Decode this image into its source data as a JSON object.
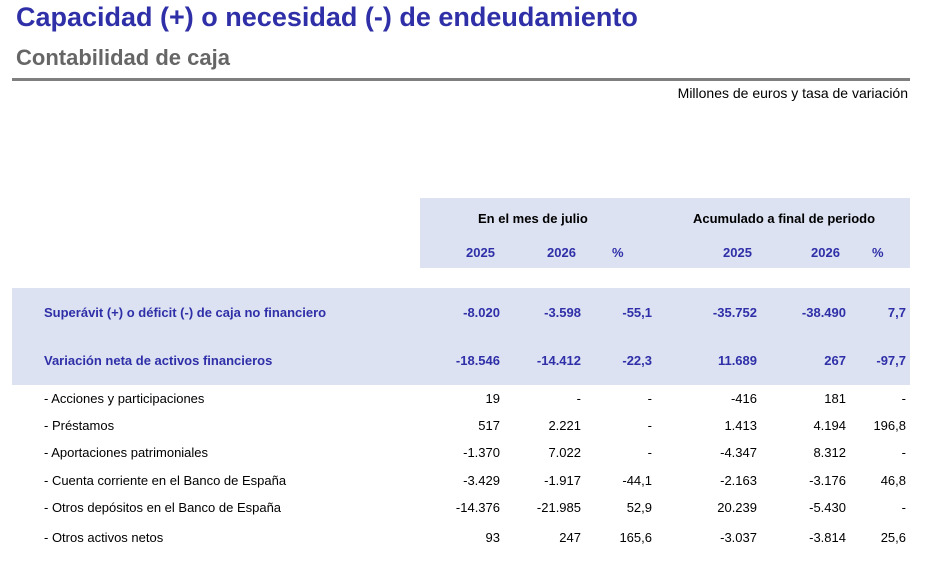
{
  "title": "Capacidad (+) o necesidad (-) de endeudamiento",
  "subtitle": "Contabilidad de caja",
  "units": "Millones de euros y tasa de variación",
  "header": {
    "group_month": "En el mes de julio",
    "group_cumulative": "Acumulado a final de periodo",
    "columns": [
      "2025",
      "2026",
      "%",
      "2025",
      "2026",
      "%"
    ]
  },
  "rows": [
    {
      "label": "Superávit (+) o déficit (-) de caja no financiero",
      "type": "main",
      "values": [
        "-8.020",
        "-3.598",
        "-55,1",
        "-35.752",
        "-38.490",
        "7,7"
      ]
    },
    {
      "label": "Variación neta de activos financieros",
      "type": "main",
      "values": [
        "-18.546",
        "-14.412",
        "-22,3",
        "11.689",
        "267",
        "-97,7"
      ]
    },
    {
      "label": "- Acciones y participaciones",
      "type": "sub",
      "values": [
        "19",
        "-",
        "-",
        "-416",
        "181",
        "-"
      ]
    },
    {
      "label": "- Préstamos",
      "type": "sub",
      "values": [
        "517",
        "2.221",
        "-",
        "1.413",
        "4.194",
        "196,8"
      ]
    },
    {
      "label": "- Aportaciones patrimoniales",
      "type": "sub",
      "values": [
        "-1.370",
        "7.022",
        "-",
        "-4.347",
        "8.312",
        "-"
      ]
    },
    {
      "label": "- Cuenta corriente en el Banco de España",
      "type": "sub",
      "values": [
        "-3.429",
        "-1.917",
        "-44,1",
        "-2.163",
        "-3.176",
        "46,8"
      ]
    },
    {
      "label": "- Otros depósitos en el Banco de España",
      "type": "sub",
      "values": [
        "-14.376",
        "-21.985",
        "52,9",
        "20.239",
        "-5.430",
        "-"
      ]
    },
    {
      "label": "- Otros activos netos",
      "type": "sub",
      "values": [
        "93",
        "247",
        "165,6",
        "-3.037",
        "-3.814",
        "25,6"
      ]
    }
  ]
}
